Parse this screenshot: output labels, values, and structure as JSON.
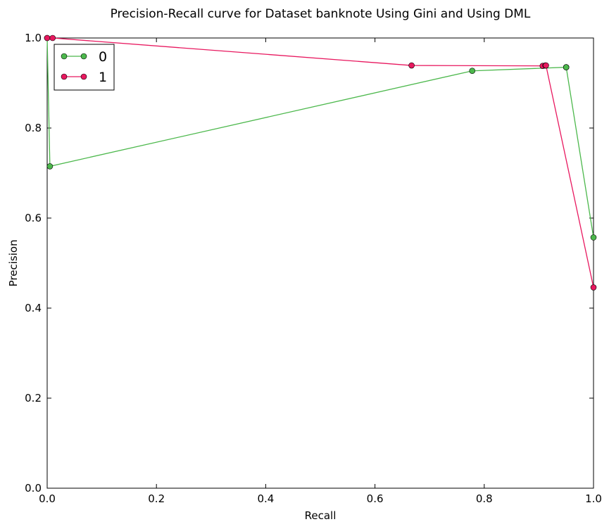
{
  "chart_data": {
    "type": "line",
    "title": "Precision-Recall curve for Dataset banknote Using Gini and Using DML",
    "xlabel": "Recall",
    "ylabel": "Precision",
    "xlim": [
      0.0,
      1.0
    ],
    "ylim": [
      0.0,
      1.0
    ],
    "xticks": [
      "0.0",
      "0.2",
      "0.4",
      "0.6",
      "0.8",
      "1.0"
    ],
    "yticks": [
      "0.0",
      "0.2",
      "0.4",
      "0.6",
      "0.8",
      "1.0"
    ],
    "grid": false,
    "legend_position": "top-left",
    "series": [
      {
        "name": "0",
        "color": "#4cb84c",
        "marker": "circle",
        "x": [
          0.0,
          0.005,
          0.778,
          0.95,
          0.95,
          1.0
        ],
        "y": [
          1.0,
          0.715,
          0.927,
          0.935,
          0.935,
          0.557
        ]
      },
      {
        "name": "1",
        "color": "#e8185f",
        "marker": "circle",
        "x": [
          0.0,
          0.01,
          0.667,
          0.907,
          0.912,
          0.913,
          1.0
        ],
        "y": [
          1.0,
          1.0,
          0.939,
          0.938,
          0.939,
          0.939,
          0.446
        ]
      }
    ]
  }
}
